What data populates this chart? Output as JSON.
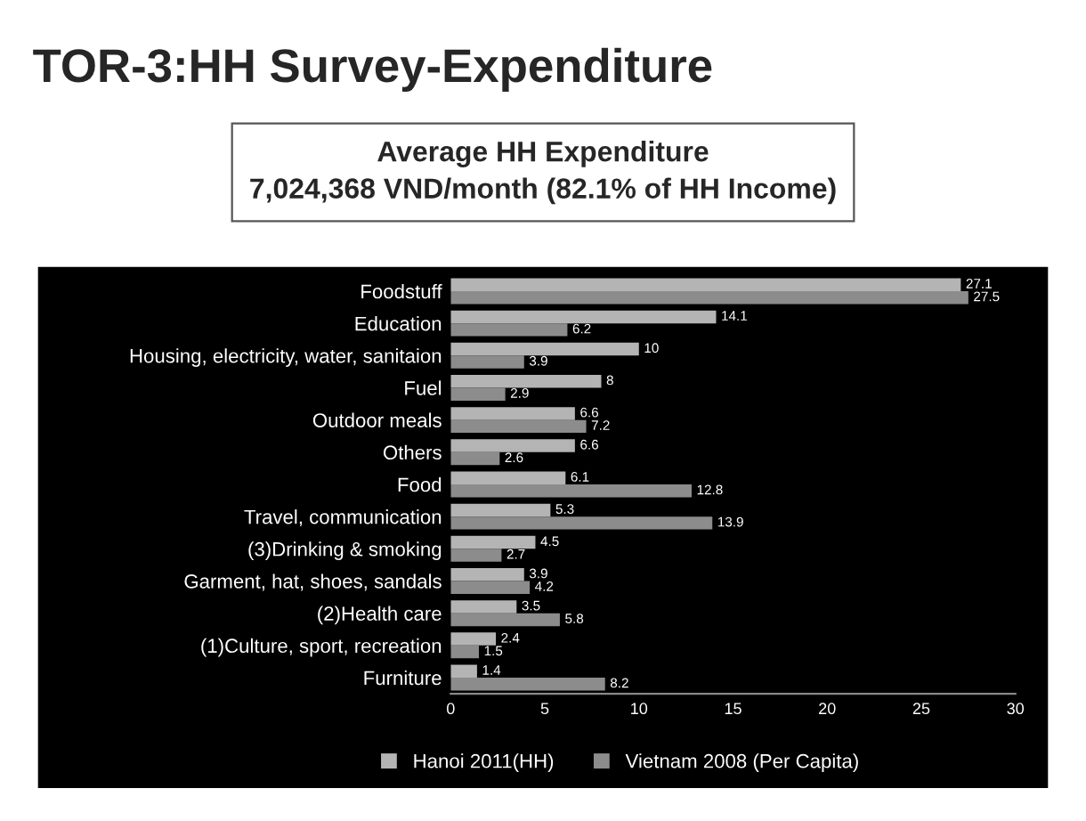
{
  "chart_data": {
    "type": "bar",
    "orientation": "horizontal",
    "title": "TOR-3:HH Survey-Expenditure",
    "subtitle": "Average HH Expenditure\n7,024,368 VND/month (82.1% of HH Income)",
    "categories": [
      "Foodstuff",
      "Education",
      "Housing, electricity, water, sanitaion",
      "Fuel",
      "Outdoor meals",
      "Others",
      "Food",
      "Travel, communication",
      "(3)Drinking & smoking",
      "Garment, hat, shoes, sandals",
      "(2)Health care",
      "(1)Culture, sport, recreation",
      "Furniture"
    ],
    "series": [
      {
        "name": "Hanoi 2011(HH)",
        "color": "#b4b4b4",
        "values": [
          27.1,
          14.1,
          10,
          8,
          6.6,
          6.6,
          6.1,
          5.3,
          4.5,
          3.9,
          3.5,
          2.4,
          1.4
        ]
      },
      {
        "name": "Vietnam 2008 (Per Capita)",
        "color": "#8c8c8c",
        "values": [
          27.5,
          6.2,
          3.9,
          2.9,
          7.2,
          2.6,
          12.8,
          13.9,
          2.7,
          4.2,
          5.8,
          1.5,
          8.2
        ]
      }
    ],
    "xlim": [
      0,
      30
    ],
    "xticks": [
      0,
      5,
      10,
      15,
      20,
      25,
      30
    ],
    "data_labels": true,
    "grid": false,
    "legend": "bottom"
  }
}
